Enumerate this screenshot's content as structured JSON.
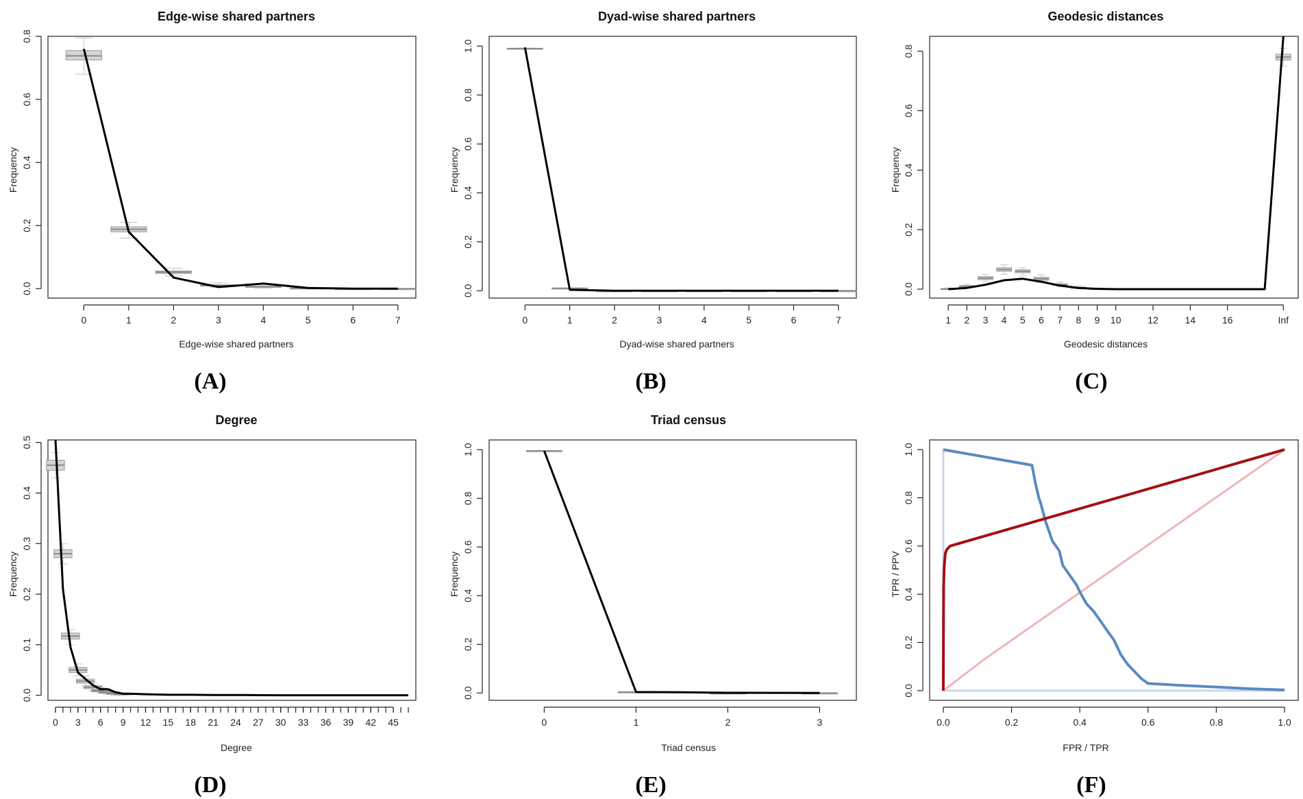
{
  "colors": {
    "observed": "#000000",
    "box_fill": "#d4d4d4",
    "tpr_fpr": "#a50f15",
    "tpr_fpr_light": "#f0b4b8",
    "ppv": "#5b8ac0",
    "ppv_light": "#c8d6ea"
  },
  "chart_data": [
    {
      "type": "line",
      "title": "Edge-wise shared partners",
      "xlabel": "Edge-wise shared partners",
      "ylabel": "Frequency",
      "letter": "(A)",
      "xlim": [
        -0.8,
        7.4
      ],
      "ylim": [
        -0.03,
        0.8
      ],
      "x_ticks": [
        0,
        1,
        2,
        3,
        4,
        5,
        6,
        7
      ],
      "x_tick_labels": [
        "0",
        "1",
        "2",
        "3",
        "4",
        "5",
        "6",
        "7"
      ],
      "y_ticks": [
        0.0,
        0.2,
        0.4,
        0.6,
        0.8
      ],
      "y_tick_labels": [
        "0.0",
        "0.2",
        "0.4",
        "0.6",
        "0.8"
      ],
      "observed": {
        "x": [
          0,
          1,
          2,
          3,
          4,
          5,
          6,
          7
        ],
        "y": [
          0.76,
          0.18,
          0.035,
          0.005,
          0.016,
          0.002,
          0.0,
          0.0
        ]
      },
      "boxes": [
        {
          "x": 0,
          "q1": 0.725,
          "median": 0.738,
          "q3": 0.755,
          "lo": 0.68,
          "hi": 0.795
        },
        {
          "x": 1,
          "q1": 0.18,
          "median": 0.188,
          "q3": 0.196,
          "lo": 0.16,
          "hi": 0.21
        },
        {
          "x": 2,
          "q1": 0.048,
          "median": 0.052,
          "q3": 0.056,
          "lo": 0.04,
          "hi": 0.065
        },
        {
          "x": 3,
          "q1": 0.008,
          "median": 0.01,
          "q3": 0.012,
          "lo": 0.004,
          "hi": 0.018
        },
        {
          "x": 4,
          "q1": 0.004,
          "median": 0.006,
          "q3": 0.008,
          "lo": 0.001,
          "hi": 0.012
        },
        {
          "x": 5,
          "q1": 0.0,
          "median": 0.001,
          "q3": 0.002,
          "lo": 0.0,
          "hi": 0.004
        },
        {
          "x": 6,
          "q1": 0.0,
          "median": 0.0,
          "q3": 0.0,
          "lo": 0.0,
          "hi": 0.001
        },
        {
          "x": 7,
          "q1": 0.0,
          "median": 0.0,
          "q3": 0.0,
          "lo": 0.0,
          "hi": 0.0
        }
      ]
    },
    {
      "type": "line",
      "title": "Dyad-wise shared partners",
      "xlabel": "Dyad-wise shared partners",
      "ylabel": "Frequency",
      "letter": "(B)",
      "xlim": [
        -0.8,
        7.4
      ],
      "ylim": [
        -0.03,
        1.04
      ],
      "x_ticks": [
        0,
        1,
        2,
        3,
        4,
        5,
        6,
        7
      ],
      "x_tick_labels": [
        "0",
        "1",
        "2",
        "3",
        "4",
        "5",
        "6",
        "7"
      ],
      "y_ticks": [
        0.0,
        0.2,
        0.4,
        0.6,
        0.8,
        1.0
      ],
      "y_tick_labels": [
        "0.0",
        "0.2",
        "0.4",
        "0.6",
        "0.8",
        "1.0"
      ],
      "observed": {
        "x": [
          0,
          1,
          2,
          3,
          4,
          5,
          6,
          7
        ],
        "y": [
          0.995,
          0.004,
          0.0,
          0.0,
          0.0,
          0.0,
          0.0,
          0.0
        ]
      },
      "boxes": [
        {
          "x": 0,
          "q1": 0.989,
          "median": 0.99,
          "q3": 0.991,
          "lo": 0.988,
          "hi": 0.992
        },
        {
          "x": 1,
          "q1": 0.009,
          "median": 0.01,
          "q3": 0.011,
          "lo": 0.008,
          "hi": 0.012
        },
        {
          "x": 2,
          "q1": 0.0,
          "median": 0.0,
          "q3": 0.0,
          "lo": 0.0,
          "hi": 0.0
        },
        {
          "x": 3,
          "q1": 0.0,
          "median": 0.0,
          "q3": 0.0,
          "lo": 0.0,
          "hi": 0.0
        },
        {
          "x": 4,
          "q1": 0.0,
          "median": 0.0,
          "q3": 0.0,
          "lo": 0.0,
          "hi": 0.0
        },
        {
          "x": 5,
          "q1": 0.0,
          "median": 0.0,
          "q3": 0.0,
          "lo": 0.0,
          "hi": 0.0
        },
        {
          "x": 6,
          "q1": 0.0,
          "median": 0.0,
          "q3": 0.0,
          "lo": 0.0,
          "hi": 0.0
        },
        {
          "x": 7,
          "q1": 0.0,
          "median": 0.0,
          "q3": 0.0,
          "lo": 0.0,
          "hi": 0.0
        }
      ]
    },
    {
      "type": "line",
      "title": "Geodesic distances",
      "xlabel": "Geodesic distances",
      "ylabel": "Frequency",
      "letter": "(C)",
      "xlim": [
        0.0,
        19.8
      ],
      "ylim": [
        -0.03,
        0.85
      ],
      "x_ticks": [
        1,
        2,
        3,
        4,
        5,
        6,
        7,
        8,
        9,
        10,
        12,
        14,
        16,
        19
      ],
      "x_tick_labels": [
        "1",
        "2",
        "3",
        "4",
        "5",
        "6",
        "7",
        "8",
        "9",
        "10",
        "12",
        "14",
        "16",
        "Inf"
      ],
      "y_ticks": [
        0.0,
        0.2,
        0.4,
        0.6,
        0.8
      ],
      "y_tick_labels": [
        "0.0",
        "0.2",
        "0.4",
        "0.6",
        "0.8"
      ],
      "observed": {
        "x": [
          1,
          2,
          3,
          4,
          5,
          6,
          7,
          8,
          9,
          10,
          11,
          12,
          13,
          14,
          15,
          16,
          17,
          18,
          19
        ],
        "y": [
          0.0,
          0.004,
          0.015,
          0.03,
          0.035,
          0.025,
          0.012,
          0.004,
          0.001,
          0.0,
          0.0,
          0.0,
          0.0,
          0.0,
          0.0,
          0.0,
          0.0,
          0.0,
          0.85
        ]
      },
      "boxes": [
        {
          "x": 1,
          "q1": 0.0,
          "median": 0.001,
          "q3": 0.002,
          "lo": 0.0,
          "hi": 0.004
        },
        {
          "x": 2,
          "q1": 0.007,
          "median": 0.009,
          "q3": 0.012,
          "lo": 0.004,
          "hi": 0.016
        },
        {
          "x": 3,
          "q1": 0.032,
          "median": 0.037,
          "q3": 0.042,
          "lo": 0.025,
          "hi": 0.05
        },
        {
          "x": 4,
          "q1": 0.06,
          "median": 0.066,
          "q3": 0.072,
          "lo": 0.05,
          "hi": 0.082
        },
        {
          "x": 5,
          "q1": 0.055,
          "median": 0.06,
          "q3": 0.065,
          "lo": 0.045,
          "hi": 0.072
        },
        {
          "x": 6,
          "q1": 0.03,
          "median": 0.035,
          "q3": 0.04,
          "lo": 0.022,
          "hi": 0.048
        },
        {
          "x": 7,
          "q1": 0.012,
          "median": 0.015,
          "q3": 0.018,
          "lo": 0.008,
          "hi": 0.024
        },
        {
          "x": 8,
          "q1": 0.003,
          "median": 0.005,
          "q3": 0.007,
          "lo": 0.001,
          "hi": 0.011
        },
        {
          "x": 9,
          "q1": 0.0,
          "median": 0.001,
          "q3": 0.002,
          "lo": 0.0,
          "hi": 0.004
        },
        {
          "x": 19,
          "q1": 0.77,
          "median": 0.78,
          "q3": 0.79,
          "lo": 0.75,
          "hi": 0.81
        }
      ]
    },
    {
      "type": "line",
      "title": "Degree",
      "xlabel": "Degree",
      "ylabel": "Frequency",
      "letter": "(D)",
      "xlim": [
        -1.0,
        48.0
      ],
      "ylim": [
        -0.01,
        0.505
      ],
      "x_ticks": [
        0,
        3,
        6,
        9,
        12,
        15,
        18,
        21,
        24,
        27,
        30,
        33,
        36,
        39,
        42,
        45
      ],
      "x_tick_labels": [
        "0",
        "3",
        "6",
        "9",
        "12",
        "15",
        "18",
        "21",
        "24",
        "27",
        "30",
        "33",
        "36",
        "39",
        "42",
        "45"
      ],
      "minor_x_ticks_every": 1,
      "minor_x_ticks_max": 47,
      "y_ticks": [
        0.0,
        0.1,
        0.2,
        0.3,
        0.4,
        0.5
      ],
      "y_tick_labels": [
        "0.0",
        "0.1",
        "0.2",
        "0.3",
        "0.4",
        "0.5"
      ],
      "observed": {
        "x": [
          0,
          1,
          2,
          3,
          4,
          5,
          6,
          7,
          8,
          9,
          10,
          12,
          15,
          18,
          21,
          25,
          30,
          35,
          40,
          47
        ],
        "y": [
          0.51,
          0.21,
          0.095,
          0.045,
          0.032,
          0.02,
          0.012,
          0.012,
          0.006,
          0.003,
          0.003,
          0.002,
          0.001,
          0.001,
          0.0005,
          0.0005,
          0.0,
          0.0,
          0.0,
          0.0
        ]
      },
      "boxes": [
        {
          "x": 0,
          "q1": 0.445,
          "median": 0.455,
          "q3": 0.465,
          "lo": 0.43,
          "hi": 0.48
        },
        {
          "x": 1,
          "q1": 0.272,
          "median": 0.28,
          "q3": 0.288,
          "lo": 0.26,
          "hi": 0.3
        },
        {
          "x": 2,
          "q1": 0.111,
          "median": 0.117,
          "q3": 0.123,
          "lo": 0.1,
          "hi": 0.13
        },
        {
          "x": 3,
          "q1": 0.045,
          "median": 0.05,
          "q3": 0.055,
          "lo": 0.038,
          "hi": 0.062
        },
        {
          "x": 4,
          "q1": 0.024,
          "median": 0.028,
          "q3": 0.032,
          "lo": 0.018,
          "hi": 0.038
        },
        {
          "x": 5,
          "q1": 0.013,
          "median": 0.016,
          "q3": 0.019,
          "lo": 0.009,
          "hi": 0.024
        },
        {
          "x": 6,
          "q1": 0.007,
          "median": 0.009,
          "q3": 0.011,
          "lo": 0.004,
          "hi": 0.015
        },
        {
          "x": 7,
          "q1": 0.004,
          "median": 0.005,
          "q3": 0.007,
          "lo": 0.002,
          "hi": 0.01
        },
        {
          "x": 8,
          "q1": 0.002,
          "median": 0.003,
          "q3": 0.004,
          "lo": 0.0,
          "hi": 0.007
        },
        {
          "x": 9,
          "q1": 0.001,
          "median": 0.002,
          "q3": 0.003,
          "lo": 0.0,
          "hi": 0.005
        }
      ]
    },
    {
      "type": "line",
      "title": "Triad census",
      "xlabel": "Triad census",
      "ylabel": "Frequency",
      "letter": "(E)",
      "xlim": [
        -0.6,
        3.4
      ],
      "ylim": [
        -0.03,
        1.04
      ],
      "x_ticks": [
        0,
        1,
        2,
        3
      ],
      "x_tick_labels": [
        "0",
        "1",
        "2",
        "3"
      ],
      "y_ticks": [
        0.0,
        0.2,
        0.4,
        0.6,
        0.8,
        1.0
      ],
      "y_tick_labels": [
        "0.0",
        "0.2",
        "0.4",
        "0.6",
        "0.8",
        "1.0"
      ],
      "observed": {
        "x": [
          0,
          1,
          1.5,
          2,
          3
        ],
        "y": [
          0.995,
          0.004,
          0.003,
          0.001,
          0.0
        ]
      },
      "boxes": [
        {
          "x": 0,
          "q1": 0.994,
          "median": 0.995,
          "q3": 0.996,
          "lo": 0.993,
          "hi": 0.997
        },
        {
          "x": 1,
          "q1": 0.0035,
          "median": 0.004,
          "q3": 0.0045,
          "lo": 0.003,
          "hi": 0.005
        },
        {
          "x": 2,
          "q1": 0.0,
          "median": 0.0,
          "q3": 0.0,
          "lo": 0.0,
          "hi": 0.0
        },
        {
          "x": 3,
          "q1": 0.0,
          "median": 0.0,
          "q3": 0.0,
          "lo": 0.0,
          "hi": 0.0
        }
      ]
    },
    {
      "type": "line",
      "title": "",
      "xlabel": "FPR / TPR",
      "ylabel": "TPR / PPV",
      "letter": "(F)",
      "xlim": [
        -0.04,
        1.04
      ],
      "ylim": [
        -0.04,
        1.04
      ],
      "x_ticks": [
        0.0,
        0.2,
        0.4,
        0.6,
        0.8,
        1.0
      ],
      "x_tick_labels": [
        "0.0",
        "0.2",
        "0.4",
        "0.6",
        "0.8",
        "1.0"
      ],
      "y_ticks": [
        0.0,
        0.2,
        0.4,
        0.6,
        0.8,
        1.0
      ],
      "y_tick_labels": [
        "0.0",
        "0.2",
        "0.4",
        "0.6",
        "0.8",
        "1.0"
      ],
      "series": [
        {
          "color": "ppv_light",
          "width": 3,
          "x": [
            0.0,
            0.0,
            1.0
          ],
          "y": [
            1.0,
            0.0,
            0.0
          ]
        },
        {
          "color": "tpr_fpr_light",
          "width": 3,
          "x": [
            0.0,
            0.12,
            1.0
          ],
          "y": [
            0.0,
            0.13,
            1.0
          ]
        },
        {
          "color": "ppv",
          "width": 4,
          "x": [
            0.0,
            0.26,
            0.27,
            0.28,
            0.285,
            0.3,
            0.31,
            0.32,
            0.33,
            0.34,
            0.35,
            0.36,
            0.38,
            0.39,
            0.4,
            0.42,
            0.44,
            0.46,
            0.48,
            0.5,
            0.52,
            0.54,
            0.56,
            0.58,
            0.6,
            0.7,
            0.8,
            0.9,
            1.0
          ],
          "y": [
            1.0,
            0.935,
            0.86,
            0.8,
            0.78,
            0.7,
            0.66,
            0.62,
            0.6,
            0.58,
            0.52,
            0.5,
            0.46,
            0.44,
            0.41,
            0.36,
            0.33,
            0.29,
            0.25,
            0.21,
            0.15,
            0.11,
            0.08,
            0.05,
            0.03,
            0.022,
            0.015,
            0.008,
            0.003
          ]
        },
        {
          "color": "tpr_fpr",
          "width": 4,
          "x": [
            0.0,
            0.001,
            0.003,
            0.006,
            0.01,
            0.02,
            1.0
          ],
          "y": [
            0.0,
            0.43,
            0.52,
            0.57,
            0.585,
            0.6,
            1.0
          ]
        }
      ]
    }
  ]
}
